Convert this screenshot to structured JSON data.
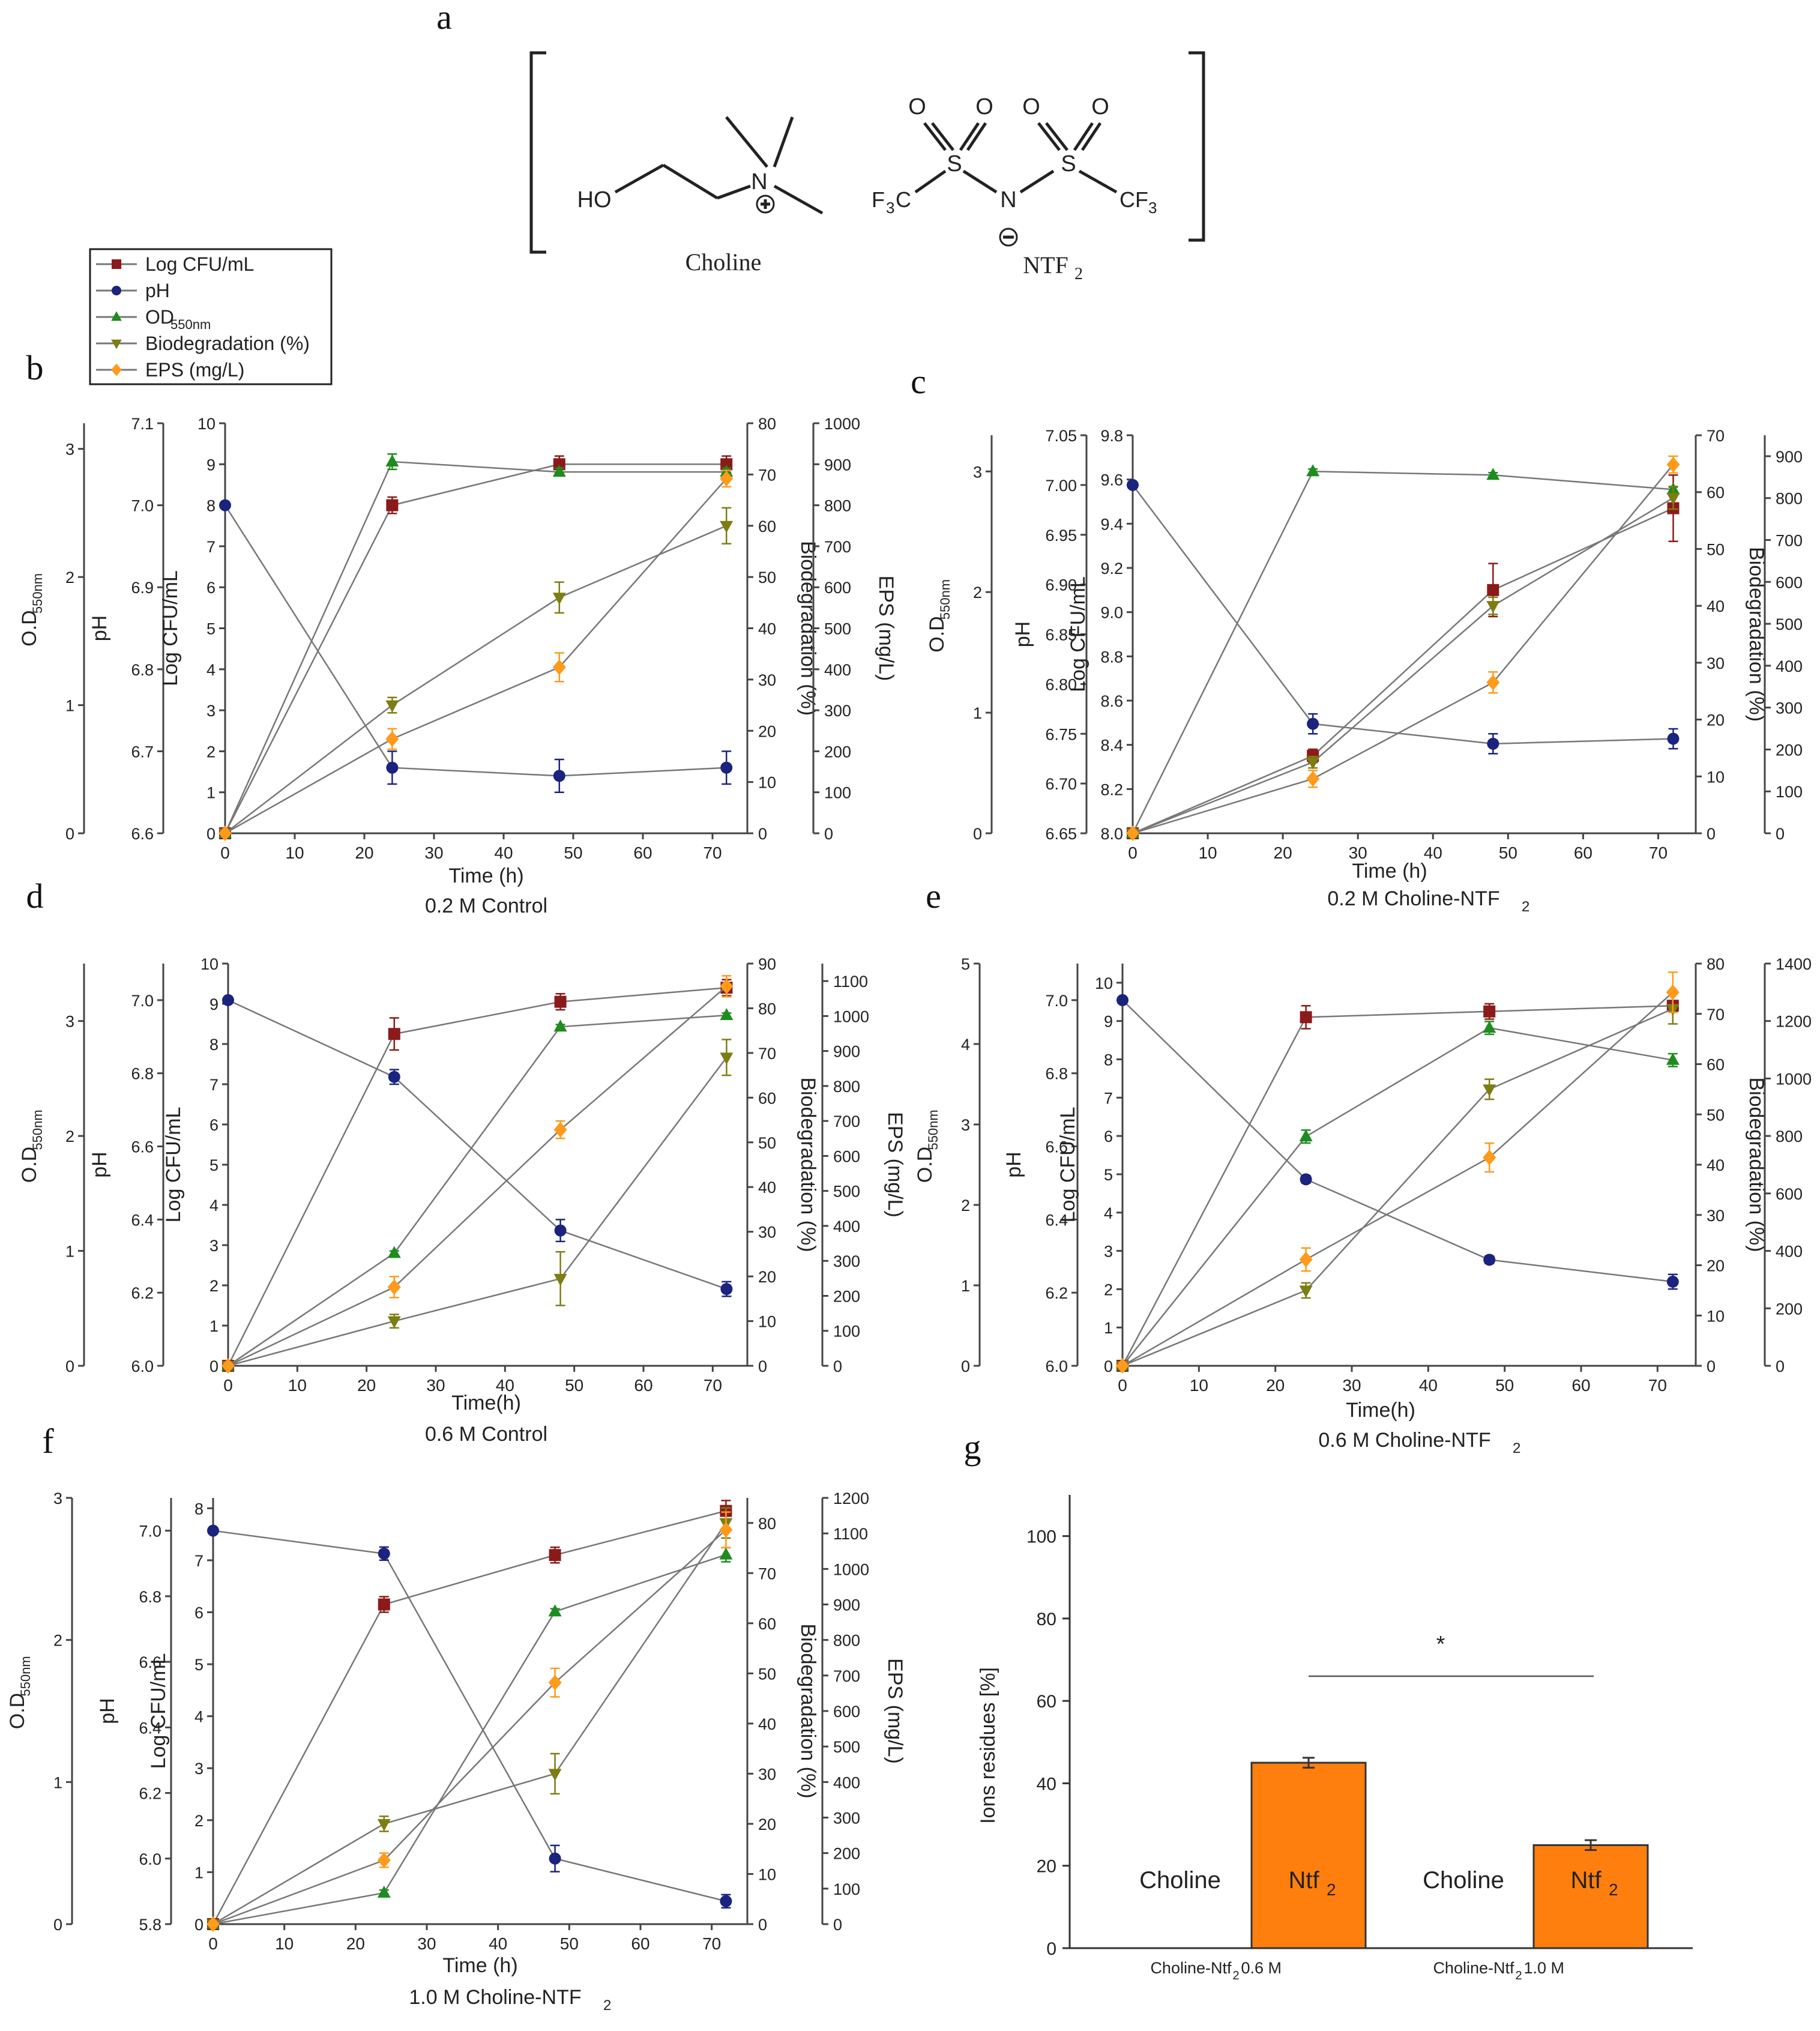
{
  "panel_letters": [
    "a",
    "b",
    "c",
    "d",
    "e",
    "f",
    "g"
  ],
  "structure": {
    "cation_label": "Choline",
    "anion_label": "NTF",
    "anion_sub": "2",
    "atoms": {
      "ho": "HO",
      "n_plus": "N",
      "s1": "S",
      "s2": "S",
      "n_minus": "N",
      "o": "O",
      "f3c_a": "F",
      "f3c_sub": "3",
      "f3c_b": "C",
      "cf3_a": "CF",
      "cf3_sub": "3"
    }
  },
  "legend": [
    {
      "name": "Log CFU/mL",
      "color": "#8b1a1a",
      "marker": "square"
    },
    {
      "name": "pH",
      "color": "#1a237e",
      "marker": "circle"
    },
    {
      "name": "OD",
      "sub": "550nm",
      "color": "#1e8c1e",
      "marker": "triangle-up"
    },
    {
      "name": "Biodegradation (%)",
      "color": "#7d7d12",
      "marker": "triangle-down"
    },
    {
      "name": "EPS (mg/L)",
      "color": "#ff9a1a",
      "marker": "diamond"
    }
  ],
  "axis_titles": {
    "od": "O.D",
    "od_sub": "550nm",
    "od_alt": "O.D ",
    "ph": "pH",
    "cfu": "Log CFU/mL",
    "bio": "Biodegradation (%)",
    "eps": "EPS (mg/L)",
    "time": "Time (h)",
    "time_alt": "Time(h)"
  },
  "chart_data": [
    {
      "type": "line",
      "panel": "b",
      "caption": "0.2 M Control",
      "time_title_alt": false,
      "x": [
        0,
        24,
        48,
        72
      ],
      "xlim": [
        0,
        75
      ],
      "xticks": [
        0,
        10,
        20,
        30,
        40,
        50,
        60,
        70
      ],
      "axes": {
        "od": {
          "lim": [
            0,
            3.2
          ],
          "ticks": [
            0,
            1,
            2,
            3
          ]
        },
        "ph": {
          "lim": [
            6.6,
            7.1
          ],
          "ticks": [
            6.6,
            6.7,
            6.8,
            6.9,
            7.0,
            7.1
          ]
        },
        "cfu": {
          "lim": [
            0,
            10
          ],
          "ticks": [
            0,
            1,
            2,
            3,
            4,
            5,
            6,
            7,
            8,
            9,
            10
          ]
        },
        "bio": {
          "lim": [
            0,
            80
          ],
          "ticks": [
            0,
            10,
            20,
            30,
            40,
            50,
            60,
            70,
            80
          ]
        },
        "eps": {
          "lim": [
            0,
            1000
          ],
          "ticks": [
            0,
            100,
            200,
            300,
            400,
            500,
            600,
            700,
            800,
            900,
            1000
          ]
        }
      },
      "series": [
        {
          "name": "Log CFU/mL",
          "axis": "cfu",
          "values": [
            0,
            8.0,
            9.0,
            9.0
          ],
          "err": [
            0,
            0.2,
            0.2,
            0.2
          ]
        },
        {
          "name": "pH",
          "axis": "ph",
          "values": [
            7.0,
            6.68,
            6.67,
            6.68
          ],
          "err": [
            0,
            0.02,
            0.02,
            0.02
          ]
        },
        {
          "name": "OD",
          "axis": "od",
          "values": [
            0,
            2.9,
            2.82,
            2.82
          ],
          "err": [
            0,
            0.06,
            0.03,
            0.03
          ]
        },
        {
          "name": "Biodegradation (%)",
          "axis": "bio",
          "values": [
            0,
            25,
            46,
            60
          ],
          "err": [
            0,
            1.5,
            3,
            3.5
          ]
        },
        {
          "name": "EPS (mg/L)",
          "axis": "eps",
          "values": [
            0,
            230,
            405,
            865
          ],
          "err": [
            0,
            25,
            35,
            20
          ]
        }
      ]
    },
    {
      "type": "line",
      "panel": "c",
      "caption": "0.2 M Choline-NTF",
      "caption_sub": "2",
      "x": [
        0,
        24,
        48,
        72
      ],
      "xlim": [
        0,
        75
      ],
      "xticks": [
        0,
        10,
        20,
        30,
        40,
        50,
        60,
        70
      ],
      "axes": {
        "od": {
          "lim": [
            0,
            3.3
          ],
          "ticks": [
            0,
            1,
            2,
            3
          ]
        },
        "ph": {
          "lim": [
            6.65,
            7.05
          ],
          "ticks": [
            6.65,
            6.7,
            6.75,
            6.8,
            6.85,
            6.9,
            6.95,
            7.0,
            7.05
          ]
        },
        "cfu": {
          "lim": [
            8.0,
            9.8
          ],
          "ticks": [
            8.0,
            8.2,
            8.4,
            8.6,
            8.8,
            9.0,
            9.2,
            9.4,
            9.6,
            9.8
          ]
        },
        "bio": {
          "lim": [
            0,
            70
          ],
          "ticks": [
            0,
            10,
            20,
            30,
            40,
            50,
            60,
            70
          ]
        },
        "eps": {
          "lim": [
            0,
            950
          ],
          "ticks": [
            0,
            100,
            200,
            300,
            400,
            500,
            600,
            700,
            800,
            900
          ]
        }
      },
      "series": [
        {
          "name": "Log CFU/mL",
          "axis": "cfu",
          "values": [
            8.0,
            8.35,
            9.1,
            9.47
          ],
          "err": [
            0,
            0.03,
            0.12,
            0.15
          ]
        },
        {
          "name": "pH",
          "axis": "ph",
          "values": [
            7.0,
            6.76,
            6.74,
            6.745
          ],
          "err": [
            0,
            0.01,
            0.01,
            0.01
          ]
        },
        {
          "name": "OD",
          "axis": "od",
          "values": [
            0,
            3.0,
            2.97,
            2.85
          ],
          "err": [
            0,
            0.02,
            0.02,
            0.02
          ]
        },
        {
          "name": "Biodegradation (%)",
          "axis": "bio",
          "values": [
            0,
            12.5,
            40,
            59
          ],
          "err": [
            0,
            1,
            1.5,
            2
          ]
        },
        {
          "name": "EPS (mg/L)",
          "axis": "eps",
          "values": [
            0,
            130,
            360,
            880
          ],
          "err": [
            0,
            20,
            25,
            20
          ]
        }
      ]
    },
    {
      "type": "line",
      "panel": "d",
      "caption": "0.6 M Control",
      "time_title_alt": true,
      "x": [
        0,
        24,
        48,
        72
      ],
      "xlim": [
        0,
        75
      ],
      "xticks": [
        0,
        10,
        20,
        30,
        40,
        50,
        60,
        70
      ],
      "axes": {
        "od": {
          "lim": [
            0,
            3.5
          ],
          "ticks": [
            0,
            1,
            2,
            3
          ]
        },
        "ph": {
          "lim": [
            6.0,
            7.1
          ],
          "ticks": [
            6.0,
            6.2,
            6.4,
            6.6,
            6.8,
            7.0
          ]
        },
        "cfu": {
          "lim": [
            0,
            10
          ],
          "ticks": [
            0,
            1,
            2,
            3,
            4,
            5,
            6,
            7,
            8,
            9,
            10
          ]
        },
        "bio": {
          "lim": [
            0,
            90
          ],
          "ticks": [
            0,
            10,
            20,
            30,
            40,
            50,
            60,
            70,
            80,
            90
          ]
        },
        "eps": {
          "lim": [
            0,
            1150
          ],
          "ticks": [
            0,
            100,
            200,
            300,
            400,
            500,
            600,
            700,
            800,
            900,
            1000,
            1100
          ]
        }
      },
      "series": [
        {
          "name": "Log CFU/mL",
          "axis": "cfu",
          "values": [
            0,
            8.25,
            9.05,
            9.4
          ],
          "err": [
            0,
            0.4,
            0.2,
            0.2
          ]
        },
        {
          "name": "pH",
          "axis": "ph",
          "values": [
            7.0,
            6.79,
            6.37,
            6.21
          ],
          "err": [
            0,
            0.02,
            0.03,
            0.02
          ]
        },
        {
          "name": "OD",
          "axis": "od",
          "values": [
            0,
            0.98,
            2.95,
            3.05
          ],
          "err": [
            0,
            0.02,
            0.02,
            0.02
          ]
        },
        {
          "name": "Biodegradation (%)",
          "axis": "bio",
          "values": [
            0,
            10,
            19.5,
            69
          ],
          "err": [
            0,
            1.5,
            6,
            4
          ]
        },
        {
          "name": "EPS (mg/L)",
          "axis": "eps",
          "values": [
            0,
            225,
            675,
            1085
          ],
          "err": [
            0,
            30,
            25,
            30
          ]
        }
      ]
    },
    {
      "type": "line",
      "panel": "e",
      "caption": "0.6 M Choline-NTF",
      "caption_sub": "2",
      "time_title_alt": true,
      "x": [
        0,
        24,
        48,
        72
      ],
      "xlim": [
        0,
        75
      ],
      "xticks": [
        0,
        10,
        20,
        30,
        40,
        50,
        60,
        70
      ],
      "axes": {
        "od": {
          "lim": [
            0,
            5
          ],
          "ticks": [
            0,
            1,
            2,
            3,
            4,
            5
          ]
        },
        "ph": {
          "lim": [
            6.0,
            7.1
          ],
          "ticks": [
            6.0,
            6.2,
            6.4,
            6.6,
            6.8,
            7.0
          ]
        },
        "cfu": {
          "lim": [
            0,
            10.5
          ],
          "ticks": [
            0,
            1,
            2,
            3,
            4,
            5,
            6,
            7,
            8,
            9,
            10
          ]
        },
        "bio": {
          "lim": [
            0,
            80
          ],
          "ticks": [
            0,
            10,
            20,
            30,
            40,
            50,
            60,
            70,
            80
          ]
        },
        "eps": {
          "lim": [
            0,
            1400
          ],
          "ticks": [
            0,
            200,
            400,
            600,
            800,
            1000,
            1200,
            1400
          ]
        }
      },
      "series": [
        {
          "name": "Log CFU/mL",
          "axis": "cfu",
          "values": [
            0,
            9.1,
            9.25,
            9.4
          ],
          "err": [
            0,
            0.3,
            0.2,
            0.1
          ]
        },
        {
          "name": "pH",
          "axis": "ph",
          "values": [
            7.0,
            6.51,
            6.29,
            6.23
          ],
          "err": [
            0,
            0.01,
            0.01,
            0.02
          ]
        },
        {
          "name": "OD",
          "axis": "od",
          "values": [
            0,
            2.85,
            4.2,
            3.8
          ],
          "err": [
            0,
            0.08,
            0.08,
            0.08
          ]
        },
        {
          "name": "Biodegradation (%)",
          "axis": "bio",
          "values": [
            0,
            15,
            55,
            71
          ],
          "err": [
            0,
            1.5,
            2,
            3
          ]
        },
        {
          "name": "EPS (mg/L)",
          "axis": "eps",
          "values": [
            0,
            370,
            725,
            1300
          ],
          "err": [
            0,
            40,
            50,
            70
          ]
        }
      ]
    },
    {
      "type": "line",
      "panel": "f",
      "caption": "1.0 M Choline-NTF",
      "caption_sub": "2",
      "x": [
        0,
        24,
        48,
        72
      ],
      "xlim": [
        0,
        75
      ],
      "xticks": [
        0,
        10,
        20,
        30,
        40,
        50,
        60,
        70
      ],
      "axes": {
        "od": {
          "lim": [
            0,
            3.0
          ],
          "ticks": [
            0,
            1,
            2,
            3
          ]
        },
        "ph": {
          "lim": [
            5.8,
            7.1
          ],
          "ticks": [
            5.8,
            6.0,
            6.2,
            6.4,
            6.6,
            6.8,
            7.0
          ]
        },
        "cfu": {
          "lim": [
            0,
            8.2
          ],
          "ticks": [
            0,
            1,
            2,
            3,
            4,
            5,
            6,
            7,
            8
          ]
        },
        "bio": {
          "lim": [
            0,
            85
          ],
          "ticks": [
            0,
            10,
            20,
            30,
            40,
            50,
            60,
            70,
            80
          ]
        },
        "eps": {
          "lim": [
            0,
            1200
          ],
          "ticks": [
            0,
            100,
            200,
            300,
            400,
            500,
            600,
            700,
            800,
            900,
            1000,
            1100,
            1200
          ]
        }
      },
      "series": [
        {
          "name": "Log CFU/mL",
          "axis": "cfu",
          "values": [
            0,
            6.15,
            7.1,
            7.95
          ],
          "err": [
            0,
            0.15,
            0.15,
            0.2
          ]
        },
        {
          "name": "pH",
          "axis": "ph",
          "values": [
            7.0,
            6.93,
            6.0,
            5.87
          ],
          "err": [
            0,
            0.02,
            0.04,
            0.02
          ]
        },
        {
          "name": "OD",
          "axis": "od",
          "values": [
            0,
            0.22,
            2.2,
            2.6
          ],
          "err": [
            0,
            0.02,
            0.02,
            0.05
          ]
        },
        {
          "name": "Biodegradation (%)",
          "axis": "bio",
          "values": [
            0,
            20,
            30,
            80
          ],
          "err": [
            0,
            1.5,
            4,
            3
          ]
        },
        {
          "name": "EPS (mg/L)",
          "axis": "eps",
          "values": [
            0,
            180,
            680,
            1110
          ],
          "err": [
            0,
            20,
            40,
            50
          ]
        }
      ]
    },
    {
      "type": "bar",
      "panel": "g",
      "ylabel": "Ions residues [%]",
      "ylim": [
        0,
        110
      ],
      "yticks": [
        0,
        20,
        40,
        60,
        80,
        100
      ],
      "categories": [
        {
          "label": "Choline-Ntf",
          "sub": "2",
          "suffix": " 0.6 M"
        },
        {
          "label": "Choline-Ntf",
          "sub": "2",
          "suffix": "1.0 M"
        }
      ],
      "series": [
        {
          "name": "Choline",
          "values": [
            0,
            0
          ],
          "color": "#ffffff"
        },
        {
          "name": "Ntf",
          "sub": "2",
          "values": [
            45,
            25
          ],
          "err": [
            1.2,
            1.2
          ],
          "color": "#ff7f0e"
        }
      ],
      "significance": "*"
    }
  ]
}
